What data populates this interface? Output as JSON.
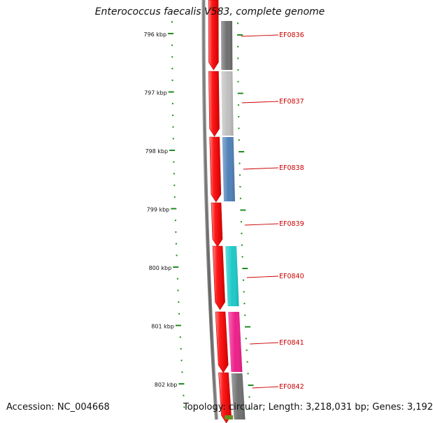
{
  "title": "Enterococcus faecalis V583, complete genome",
  "footer": {
    "accession": "Accession: NC_004668",
    "summary": "Topology: circular; Length: 3,218,031 bp; Genes: 3,192"
  },
  "map": {
    "unit": "kbp",
    "ticks": [
      {
        "position_kbp": 796,
        "label": "796 kbp"
      },
      {
        "position_kbp": 797,
        "label": "797 kbp"
      },
      {
        "position_kbp": 798,
        "label": "798 kbp"
      },
      {
        "position_kbp": 799,
        "label": "799 kbp"
      },
      {
        "position_kbp": 800,
        "label": "800 kbp"
      },
      {
        "position_kbp": 801,
        "label": "801 kbp"
      },
      {
        "position_kbp": 802,
        "label": "802 kbp"
      }
    ],
    "genes": [
      {
        "name": "EF0836",
        "color": "#707070"
      },
      {
        "name": "EF0837",
        "color": "#c0c0c0"
      },
      {
        "name": "EF0838",
        "color": "#4f81b8"
      },
      {
        "name": "EF0839",
        "color": "#ffffff"
      },
      {
        "name": "EF0840",
        "color": "#1ec9c9"
      },
      {
        "name": "EF0841",
        "color": "#ee1f8a"
      },
      {
        "name": "EF0842",
        "color": "#707070"
      }
    ],
    "colors": {
      "forward_feature": "#ee1111",
      "label_text": "#cc0000",
      "tick_marks": "#228b22",
      "backbone": "#808080"
    }
  }
}
